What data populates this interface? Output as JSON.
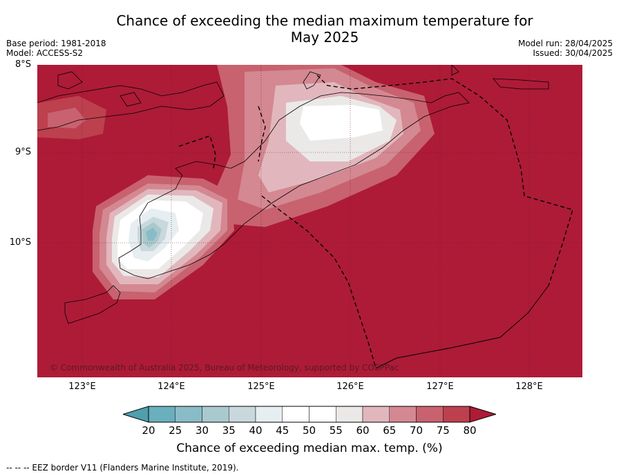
{
  "title_line1": "Chance of exceeding the median maximum temperature for",
  "title_line2": "May 2025",
  "meta_left": {
    "base_period": "Base period: 1981-2018",
    "model": "Model: ACCESS-S2"
  },
  "meta_right": {
    "model_run": "Model run: 28/04/2025",
    "issued": "Issued: 30/04/2025"
  },
  "lat_labels": [
    "8°S",
    "9°S",
    "10°S"
  ],
  "lon_labels": [
    "123°E",
    "124°E",
    "125°E",
    "126°E",
    "127°E",
    "128°E"
  ],
  "copyright": "© Commonwealth of Australia 2025, Bureau of Meteorology, supported by COSPPac",
  "colorbar": {
    "ticks": [
      "20",
      "25",
      "30",
      "35",
      "40",
      "45",
      "50",
      "55",
      "60",
      "65",
      "70",
      "75",
      "80"
    ],
    "label": "Chance of exceeding median max. temp. (%)",
    "colors": [
      "#4f9fad",
      "#6aafbd",
      "#89bcc6",
      "#a9c9ce",
      "#c9d8dc",
      "#e7eef1",
      "#ffffff",
      "#ffffff",
      "#ebe9e8",
      "#e1b7bd",
      "#d48891",
      "#c8626f",
      "#bd404e",
      "#ad1b37"
    ]
  },
  "footnote": "--  --  -- EEZ border V11 (Flanders Marine Institute, 2019)."
}
